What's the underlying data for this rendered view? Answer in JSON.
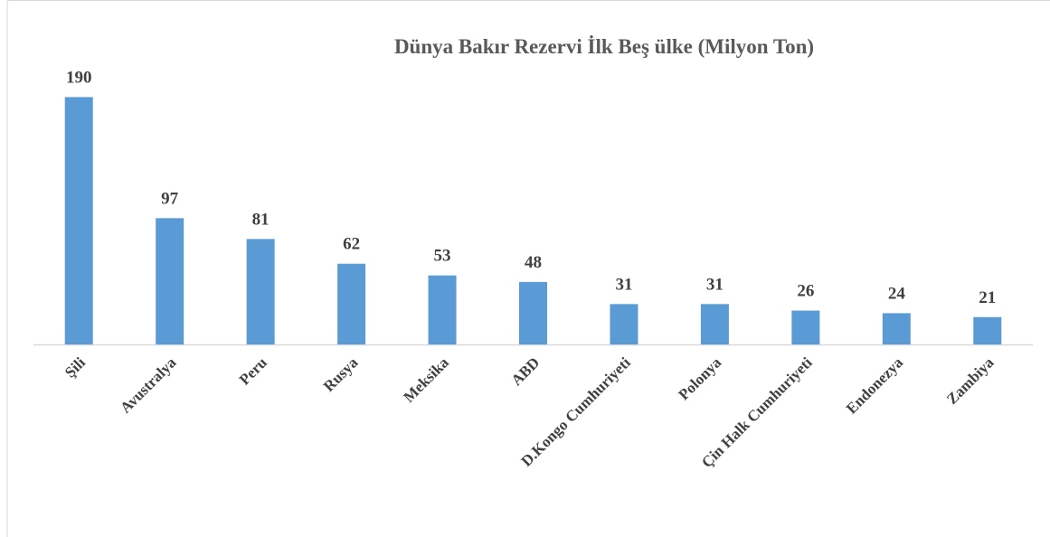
{
  "chart_data": {
    "type": "bar",
    "title": "Dünya Bakır Rezervi İlk Beş ülke (Milyon Ton)",
    "categories": [
      "Şili",
      "Avustralya",
      "Peru",
      "Rusya",
      "Meksika",
      "ABD",
      "D.Kongo Cumhuriyeti",
      "Polonya",
      "Çin Halk Cumhuriyeti",
      "Endonezya",
      "Zambiya"
    ],
    "values": [
      190,
      97,
      81,
      62,
      53,
      48,
      31,
      31,
      26,
      24,
      21
    ],
    "color": "#5b9bd5",
    "ylim": [
      0,
      200
    ]
  }
}
